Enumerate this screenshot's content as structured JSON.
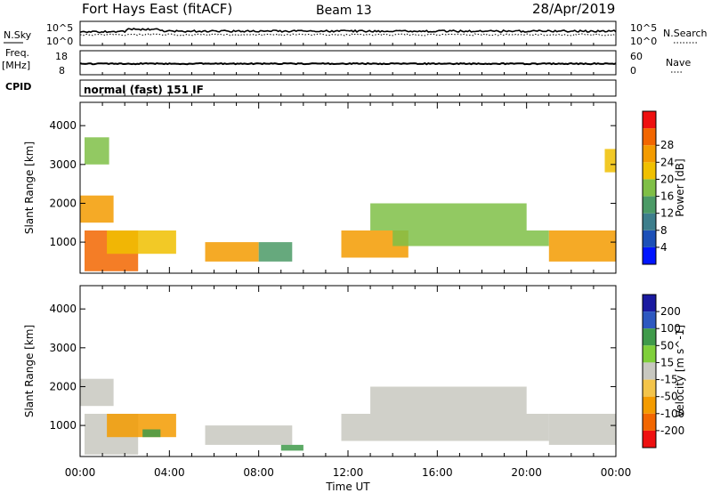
{
  "header": {
    "station": "Fort Hays East (fitACF)",
    "beam": "Beam 13",
    "date": "28/Apr/2019"
  },
  "strip_labels": {
    "nsky": "N.Sky",
    "nsky_top": "10^5",
    "nsky_bot": "10^0",
    "nsearch": "N.Search",
    "nsearch_top": "10^5",
    "nsearch_bot": "10^0",
    "freq": "Freq.",
    "freq_unit": "[MHz]",
    "freq_top": "18",
    "freq_bot": "8",
    "nave": "Nave",
    "nave_top": "60",
    "nave_bot": "0",
    "cpid": "CPID",
    "cpid_text": "normal (fast) 151 IF"
  },
  "colors": {
    "power": [
      "#0015ff",
      "#1c50b8",
      "#3d7e8c",
      "#4b9a66",
      "#7fbf46",
      "#f0c000",
      "#f39b00",
      "#f26600",
      "#ee1010"
    ],
    "velocity": [
      "#ee1010",
      "#f26600",
      "#f39b00",
      "#f3c44a",
      "#c8c8c0",
      "#7fcf3a",
      "#3f9a4a",
      "#2d58c0",
      "#1a1aa0"
    ]
  },
  "chart_data": [
    {
      "type": "heatmap",
      "ylabel": "Slant Range [km]",
      "xlabel": "Time UT",
      "x_ticks": [
        "00:00",
        "04:00",
        "08:00",
        "12:00",
        "16:00",
        "20:00",
        "00:00"
      ],
      "y_ticks": [
        "1000",
        "2000",
        "3000",
        "4000"
      ],
      "ylim": [
        200,
        4600
      ],
      "colorbar": {
        "label": "Power [dB]",
        "ticks": [
          "4",
          "8",
          "12",
          "16",
          "20",
          "24",
          "28"
        ],
        "range": [
          0,
          32
        ]
      },
      "regions": [
        {
          "t0": 0.0,
          "t1": 1.5,
          "r0": 1500,
          "r1": 2200,
          "v": 24
        },
        {
          "t0": 0.2,
          "t1": 2.6,
          "r0": 250,
          "r1": 1300,
          "v": 26
        },
        {
          "t0": 1.2,
          "t1": 4.3,
          "r0": 700,
          "r1": 1300,
          "v": 20
        },
        {
          "t0": 5.6,
          "t1": 8.0,
          "r0": 500,
          "r1": 1000,
          "v": 22
        },
        {
          "t0": 8.0,
          "t1": 9.5,
          "r0": 500,
          "r1": 1000,
          "v": 14
        },
        {
          "t0": 11.7,
          "t1": 14.7,
          "r0": 600,
          "r1": 1300,
          "v": 22
        },
        {
          "t0": 14.0,
          "t1": 21.0,
          "r0": 900,
          "r1": 1300,
          "v": 16
        },
        {
          "t0": 13.0,
          "t1": 20.0,
          "r0": 1300,
          "r1": 2000,
          "v": 15
        },
        {
          "t0": 21.0,
          "t1": 24.0,
          "r0": 500,
          "r1": 1300,
          "v": 24
        },
        {
          "t0": 0.2,
          "t1": 1.3,
          "r0": 3000,
          "r1": 3700,
          "v": 16
        },
        {
          "t0": 23.5,
          "t1": 24.0,
          "r0": 2800,
          "r1": 3400,
          "v": 20
        }
      ]
    },
    {
      "type": "heatmap",
      "ylabel": "Slant Range [km]",
      "xlabel": "Time UT",
      "x_ticks": [
        "00:00",
        "04:00",
        "08:00",
        "12:00",
        "16:00",
        "20:00",
        "00:00"
      ],
      "y_ticks": [
        "1000",
        "2000",
        "3000",
        "4000"
      ],
      "ylim": [
        200,
        4600
      ],
      "colorbar": {
        "label": "Velocity [m s^-1]",
        "ticks": [
          "200",
          "100",
          "50",
          "15",
          "-15",
          "-50",
          "-100",
          "-200"
        ]
      },
      "regions": [
        {
          "t0": 0.0,
          "t1": 1.5,
          "r0": 1500,
          "r1": 2200,
          "v": 0
        },
        {
          "t0": 0.2,
          "t1": 2.6,
          "r0": 250,
          "r1": 1300,
          "v": 0
        },
        {
          "t0": 1.2,
          "t1": 4.3,
          "r0": 700,
          "r1": 1300,
          "v": -30
        },
        {
          "t0": 5.6,
          "t1": 9.5,
          "r0": 500,
          "r1": 1000,
          "v": 0
        },
        {
          "t0": 11.7,
          "t1": 21.0,
          "r0": 600,
          "r1": 1300,
          "v": 0
        },
        {
          "t0": 13.0,
          "t1": 20.0,
          "r0": 1300,
          "r1": 2000,
          "v": 0
        },
        {
          "t0": 21.0,
          "t1": 24.0,
          "r0": 500,
          "r1": 1300,
          "v": 0
        },
        {
          "t0": 2.8,
          "t1": 3.6,
          "r0": 700,
          "r1": 900,
          "v": 60
        },
        {
          "t0": 9.0,
          "t1": 10.0,
          "r0": 350,
          "r1": 500,
          "v": 60
        }
      ]
    }
  ]
}
